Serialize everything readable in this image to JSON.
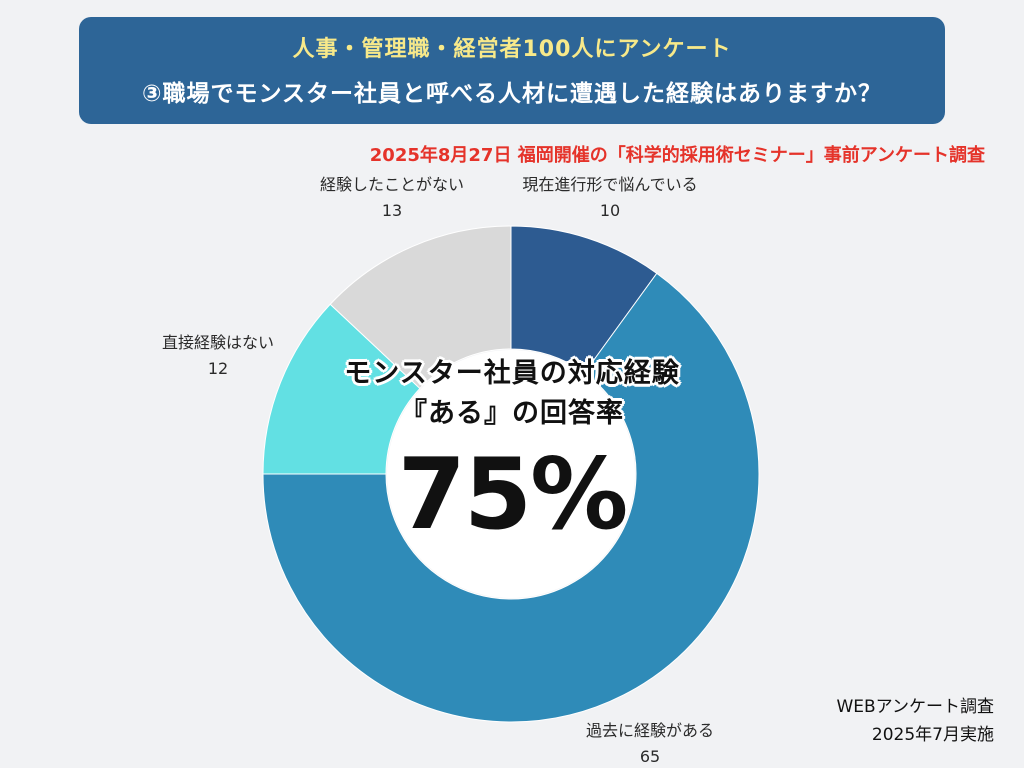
{
  "banner": {
    "line1": "人事・管理職・経営者100人にアンケート",
    "line2": "③職場でモンスター社員と呼べる人材に遭遇した経験はありますか？"
  },
  "subtitle": "2025年8月27日 福岡開催の「科学的採用術セミナー」事前アンケート調査",
  "center": {
    "heading1": "モンスター社員の対応経験",
    "heading2": "『ある』の回答率",
    "percent": "75%"
  },
  "footer": {
    "line1": "WEBアンケート調査",
    "line2": "2025年7月実施"
  },
  "chart_data": {
    "type": "pie",
    "donut": true,
    "start": "12 o'clock, clockwise",
    "categories": [
      "現在進行形で悩んでいる",
      "過去に経験がある",
      "直接経験はない",
      "経験したことがない"
    ],
    "values": [
      10,
      65,
      12,
      13
    ],
    "labels": [
      "10",
      "65",
      "12",
      "13"
    ],
    "colors": [
      "#2d5b91",
      "#2f8bb8",
      "#62e0e3",
      "#d9d9d9"
    ]
  }
}
